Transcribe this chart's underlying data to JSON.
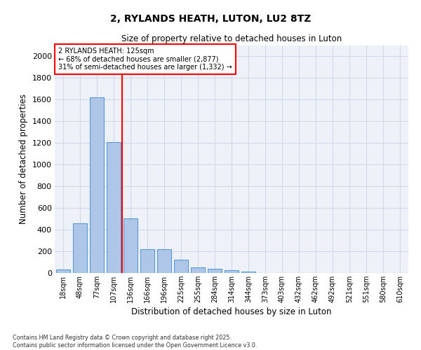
{
  "title_line1": "2, RYLANDS HEATH, LUTON, LU2 8TZ",
  "title_line2": "Size of property relative to detached houses in Luton",
  "xlabel": "Distribution of detached houses by size in Luton",
  "ylabel": "Number of detached properties",
  "categories": [
    "18sqm",
    "48sqm",
    "77sqm",
    "107sqm",
    "136sqm",
    "166sqm",
    "196sqm",
    "225sqm",
    "255sqm",
    "284sqm",
    "314sqm",
    "344sqm",
    "373sqm",
    "403sqm",
    "432sqm",
    "462sqm",
    "492sqm",
    "521sqm",
    "551sqm",
    "580sqm",
    "610sqm"
  ],
  "values": [
    35,
    460,
    1620,
    1210,
    505,
    220,
    220,
    125,
    50,
    40,
    25,
    15,
    0,
    0,
    0,
    0,
    0,
    0,
    0,
    0,
    0
  ],
  "bar_color": "#aec6e8",
  "bar_edge_color": "#5b9bd5",
  "vline_color": "red",
  "annotation_text": "2 RYLANDS HEATH: 125sqm\n← 68% of detached houses are smaller (2,877)\n31% of semi-detached houses are larger (1,332) →",
  "annotation_box_color": "red",
  "annotation_bg": "white",
  "ylim": [
    0,
    2100
  ],
  "yticks": [
    0,
    200,
    400,
    600,
    800,
    1000,
    1200,
    1400,
    1600,
    1800,
    2000
  ],
  "grid_color": "#d0d8e8",
  "bg_color": "#eef2f8",
  "footnote": "Contains HM Land Registry data © Crown copyright and database right 2025.\nContains public sector information licensed under the Open Government Licence v3.0."
}
